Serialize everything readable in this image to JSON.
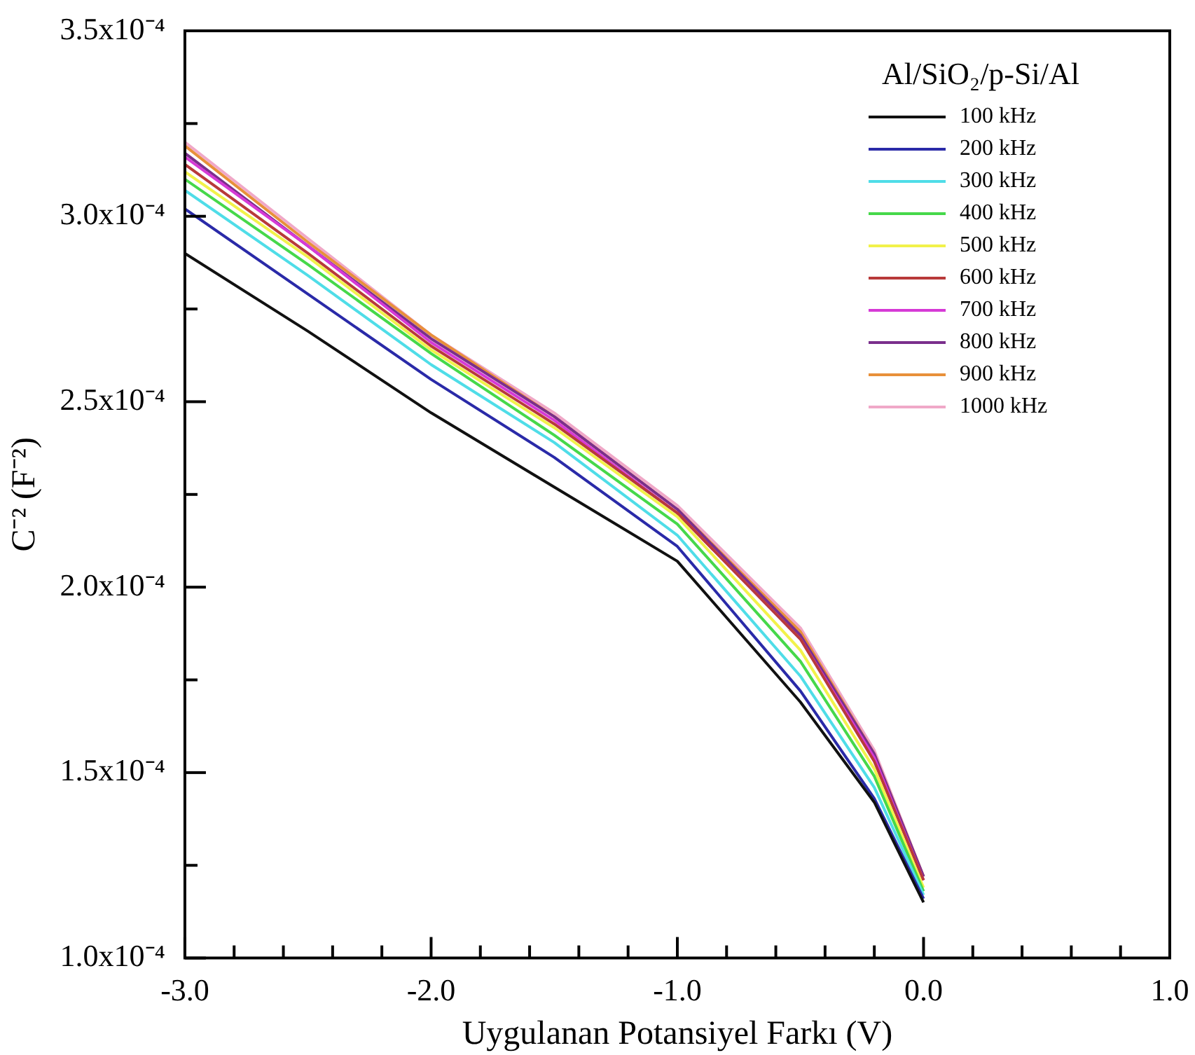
{
  "chart_data": {
    "type": "line",
    "xlabel": "Uygulanan Potansiyel Farkı (V)",
    "ylabel": "C⁻² (F⁻²)",
    "legend_title": "Al/SiO₂/p-Si/Al",
    "legend": "top right",
    "marker": "none",
    "line_style": "solid",
    "grid": false,
    "x": [
      -3.0,
      -2.5,
      -2.0,
      -1.5,
      -1.0,
      -0.5,
      -0.2,
      0.0
    ],
    "xlim": [
      -3.0,
      1.0
    ],
    "xticks": [
      {
        "value": -3.0,
        "label": "-3.0"
      },
      {
        "value": -2.8,
        "label": null
      },
      {
        "value": -2.6,
        "label": null
      },
      {
        "value": -2.4,
        "label": null
      },
      {
        "value": -2.2,
        "label": null
      },
      {
        "value": -2.0,
        "label": "-2.0"
      },
      {
        "value": -1.8,
        "label": null
      },
      {
        "value": -1.6,
        "label": null
      },
      {
        "value": -1.4,
        "label": null
      },
      {
        "value": -1.2,
        "label": null
      },
      {
        "value": -1.0,
        "label": "-1.0"
      },
      {
        "value": -0.8,
        "label": null
      },
      {
        "value": -0.6,
        "label": null
      },
      {
        "value": -0.4,
        "label": null
      },
      {
        "value": -0.2,
        "label": null
      },
      {
        "value": 0.0,
        "label": "0.0"
      },
      {
        "value": 0.2,
        "label": null
      },
      {
        "value": 0.4,
        "label": null
      },
      {
        "value": 0.6,
        "label": null
      },
      {
        "value": 0.8,
        "label": null
      },
      {
        "value": 1.0,
        "label": "1.0"
      }
    ],
    "ylim": [
      0.0001,
      0.00035
    ],
    "yticks": [
      {
        "value": 0.0001,
        "label": "1.0x10⁻⁴"
      },
      {
        "value": 0.000125,
        "label": null
      },
      {
        "value": 0.00015,
        "label": "1.5x10⁻⁴"
      },
      {
        "value": 0.000175,
        "label": null
      },
      {
        "value": 0.0002,
        "label": "2.0x10⁻⁴"
      },
      {
        "value": 0.000225,
        "label": null
      },
      {
        "value": 0.00025,
        "label": "2.5x10⁻⁴"
      },
      {
        "value": 0.000275,
        "label": null
      },
      {
        "value": 0.0003,
        "label": "3.0x10⁻⁴"
      },
      {
        "value": 0.000325,
        "label": null
      },
      {
        "value": 0.00035,
        "label": "3.5x10⁻⁴"
      }
    ],
    "series": [
      {
        "name": "100 kHz",
        "color": "#111111",
        "values": [
          0.00029,
          0.000269,
          0.000247,
          0.000227,
          0.000207,
          0.000169,
          0.000142,
          0.000115
        ]
      },
      {
        "name": "200 kHz",
        "color": "#2a2aa8",
        "values": [
          0.000302,
          0.000279,
          0.000256,
          0.000235,
          0.000211,
          0.000172,
          0.000143,
          0.000116
        ]
      },
      {
        "name": "300 kHz",
        "color": "#4fdde8",
        "values": [
          0.000307,
          0.000284,
          0.00026,
          0.000239,
          0.000214,
          0.000176,
          0.000146,
          0.000117
        ]
      },
      {
        "name": "400 kHz",
        "color": "#46d84a",
        "values": [
          0.00031,
          0.000287,
          0.000263,
          0.000241,
          0.000217,
          0.00018,
          0.000149,
          0.000118
        ]
      },
      {
        "name": "500 kHz",
        "color": "#f2f24a",
        "values": [
          0.000312,
          0.000289,
          0.000264,
          0.000243,
          0.000219,
          0.000183,
          0.000151,
          0.000119
        ]
      },
      {
        "name": "600 kHz",
        "color": "#b83a3a",
        "values": [
          0.000314,
          0.00029,
          0.000265,
          0.000244,
          0.00022,
          0.000186,
          0.000153,
          0.000121
        ]
      },
      {
        "name": "700 kHz",
        "color": "#d63ad6",
        "values": [
          0.000316,
          0.000292,
          0.000266,
          0.000245,
          0.00022,
          0.000186,
          0.000154,
          0.000121
        ]
      },
      {
        "name": "800 kHz",
        "color": "#7a2f8c",
        "values": [
          0.000317,
          0.000292,
          0.000267,
          0.000246,
          0.000221,
          0.000187,
          0.000155,
          0.000122
        ]
      },
      {
        "name": "900 kHz",
        "color": "#e8903a",
        "values": [
          0.000319,
          0.000293,
          0.000268,
          0.000246,
          0.000221,
          0.000188,
          0.000155,
          0.000122
        ]
      },
      {
        "name": "1000 kHz",
        "color": "#f0a8c8",
        "values": [
          0.00032,
          0.000294,
          0.000268,
          0.000247,
          0.000222,
          0.000189,
          0.000156,
          0.000122
        ]
      }
    ]
  }
}
